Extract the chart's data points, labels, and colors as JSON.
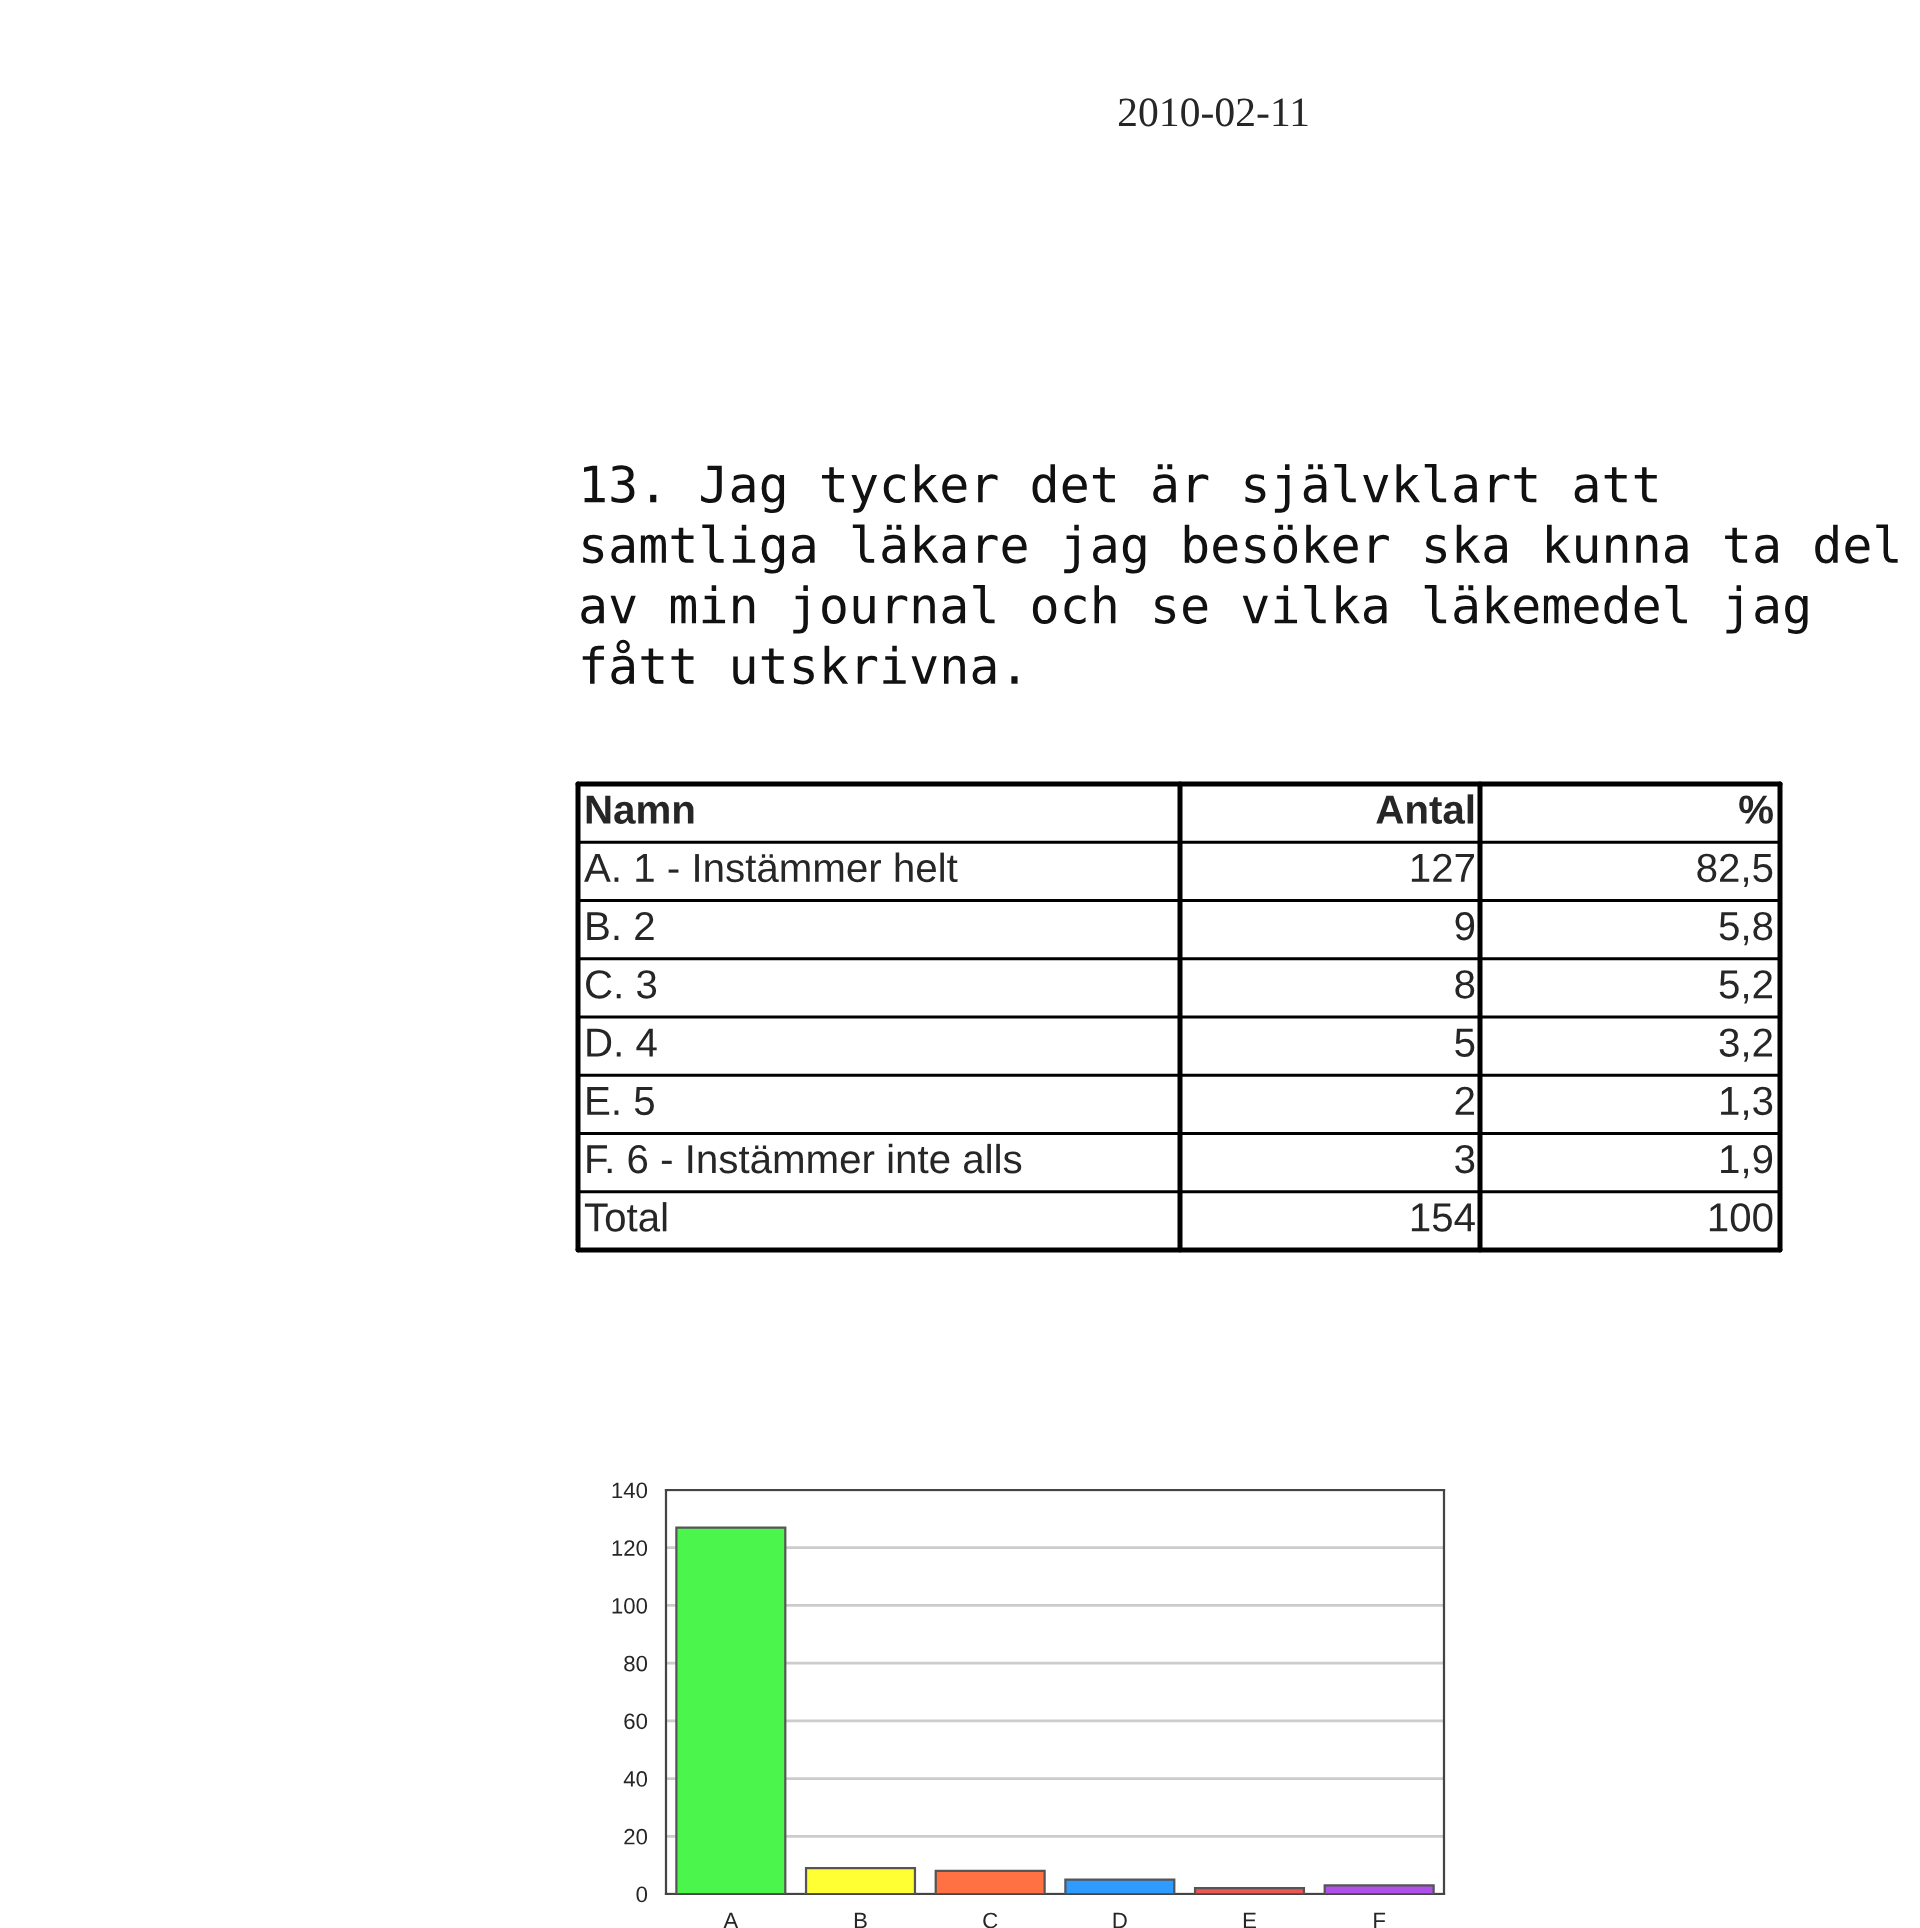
{
  "chart_data": {
    "type": "bar",
    "title": "13. Jag tycker det är självklart att samtliga läkare jag besöker ska kunna ta del av min journal och se vilka läkemedel jag fått utskrivna.",
    "categories": [
      "A",
      "B",
      "C",
      "D",
      "E",
      "F"
    ],
    "values": [
      127,
      9,
      8,
      5,
      2,
      3
    ],
    "colors": [
      "#4cf54c",
      "#ffff33",
      "#ff7043",
      "#2f9bff",
      "#ee5555",
      "#b050e8"
    ],
    "ylim": [
      0,
      140
    ],
    "yticks": [
      0,
      20,
      40,
      60,
      80,
      100,
      120,
      140
    ],
    "grid": "y",
    "annotations": [
      "2010-02-11",
      "Namn",
      "Antal",
      "%",
      "A. 1 - Instämmer helt",
      "127",
      "82,5",
      "B. 2",
      "9",
      "5,8",
      "C. 3",
      "8",
      "5,2",
      "D. 4",
      "5",
      "3,2",
      "E. 5",
      "2",
      "1,3",
      "F. 6 - Instämmer inte alls",
      "3",
      "1,9",
      "Total",
      "154",
      "100"
    ]
  }
}
